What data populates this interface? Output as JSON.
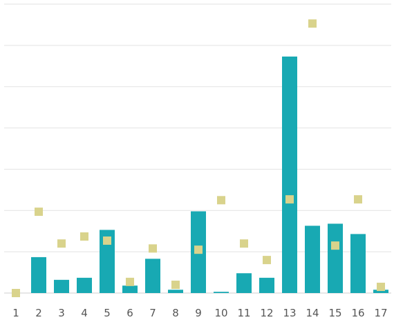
{
  "chart_data": {
    "type": "bar",
    "title": "",
    "xlabel": "",
    "ylabel": "",
    "categories": [
      "1",
      "2",
      "3",
      "4",
      "5",
      "6",
      "7",
      "8",
      "9",
      "10",
      "11",
      "12",
      "13",
      "14",
      "15",
      "16",
      "17"
    ],
    "ylim": [
      0,
      7
    ],
    "grid": true,
    "legend": "none",
    "series": [
      {
        "kind": "bar",
        "color": "#18a9b3",
        "values": [
          0,
          0.87,
          0.32,
          0.37,
          1.53,
          0.18,
          0.83,
          0.08,
          1.98,
          0.03,
          0.48,
          0.37,
          5.73,
          1.63,
          1.68,
          1.43,
          0.08
        ]
      },
      {
        "kind": "marker",
        "marker": "square",
        "color": "#d9d38c",
        "values": [
          0,
          1.97,
          1.2,
          1.37,
          1.27,
          0.27,
          1.08,
          0.2,
          1.05,
          2.25,
          1.2,
          0.8,
          2.27,
          6.53,
          1.15,
          2.27,
          0.15
        ]
      }
    ]
  }
}
